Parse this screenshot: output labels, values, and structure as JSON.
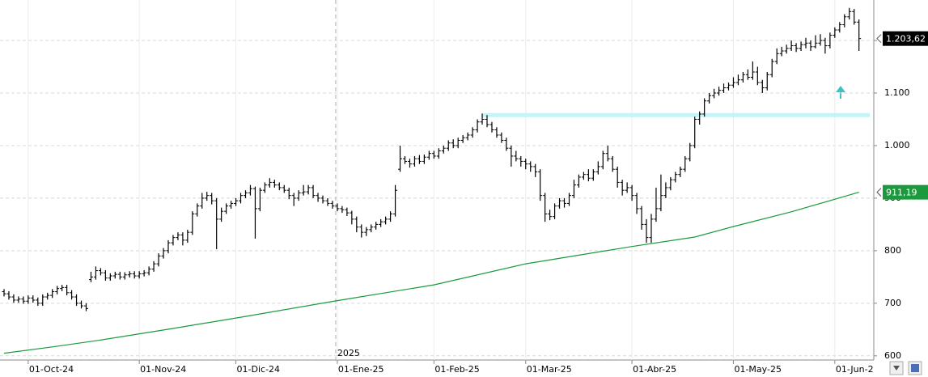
{
  "chart_data": {
    "type": "ohlc",
    "categories": [
      null,
      null,
      null,
      null,
      null,
      "01-Oct-24",
      null,
      null,
      null,
      null,
      null,
      null,
      null,
      null,
      null,
      null,
      null,
      null,
      null,
      null,
      null,
      null,
      null,
      null,
      null,
      null,
      null,
      null,
      "01-Nov-24",
      null,
      null,
      null,
      null,
      null,
      null,
      null,
      null,
      null,
      null,
      null,
      null,
      null,
      null,
      null,
      null,
      null,
      null,
      null,
      "01-Dic-24",
      null,
      null,
      null,
      null,
      null,
      null,
      null,
      null,
      null,
      null,
      null,
      null,
      null,
      null,
      null,
      null,
      null,
      null,
      null,
      null,
      "01-Ene-25",
      null,
      null,
      null,
      null,
      null,
      null,
      null,
      null,
      null,
      null,
      null,
      null,
      null,
      null,
      null,
      null,
      null,
      null,
      null,
      "01-Feb-25",
      null,
      null,
      null,
      null,
      null,
      null,
      null,
      null,
      null,
      null,
      null,
      null,
      null,
      null,
      null,
      null,
      null,
      null,
      "01-Mar-25",
      null,
      null,
      null,
      null,
      null,
      null,
      null,
      null,
      null,
      null,
      null,
      null,
      null,
      null,
      null,
      null,
      null,
      null,
      null,
      null,
      null,
      "01-Abr-25",
      null,
      null,
      null,
      null,
      null,
      null,
      null,
      null,
      null,
      null,
      null,
      null,
      null,
      null,
      null,
      null,
      null,
      null,
      null,
      null,
      "01-May-25",
      null,
      null,
      null,
      null,
      null,
      null,
      null,
      null,
      null,
      null,
      null,
      null,
      null,
      null,
      null,
      null,
      null,
      null,
      null,
      null,
      "01-Jun-2",
      null,
      null,
      null,
      null,
      null
    ],
    "ohlc": {
      "color": "#000000",
      "open": [
        722,
        718,
        712,
        706,
        708,
        704,
        710,
        706,
        700,
        712,
        715,
        722,
        728,
        730,
        720,
        712,
        700,
        695,
        745,
        750,
        762,
        758,
        748,
        752,
        755,
        750,
        754,
        756,
        752,
        756,
        758,
        765,
        775,
        790,
        800,
        815,
        825,
        830,
        820,
        835,
        870,
        885,
        900,
        905,
        895,
        860,
        875,
        885,
        890,
        895,
        905,
        910,
        918,
        880,
        915,
        925,
        930,
        925,
        920,
        915,
        905,
        900,
        910,
        912,
        920,
        905,
        900,
        895,
        890,
        885,
        880,
        878,
        872,
        860,
        845,
        835,
        840,
        845,
        850,
        855,
        860,
        870,
        955,
        975,
        970,
        965,
        975,
        970,
        978,
        985,
        980,
        990,
        995,
        1005,
        1000,
        1010,
        1015,
        1020,
        1030,
        1045,
        1050,
        1040,
        1030,
        1020,
        1010,
        995,
        980,
        975,
        970,
        965,
        960,
        950,
        905,
        870,
        865,
        885,
        895,
        890,
        905,
        925,
        940,
        945,
        938,
        950,
        960,
        985,
        975,
        955,
        930,
        915,
        920,
        905,
        880,
        850,
        825,
        860,
        880,
        905,
        920,
        935,
        945,
        955,
        975,
        1000,
        1050,
        1060,
        1085,
        1095,
        1100,
        1105,
        1110,
        1115,
        1120,
        1125,
        1135,
        1130,
        1140,
        1120,
        1110,
        1135,
        1160,
        1175,
        1180,
        1185,
        1190,
        1185,
        1192,
        1195,
        1188,
        1195,
        1200,
        1190,
        1210,
        1220,
        1230,
        1245,
        1255,
        1235
      ],
      "high": [
        727,
        723,
        717,
        713,
        713,
        715,
        715,
        711,
        717,
        720,
        727,
        733,
        735,
        735,
        725,
        717,
        705,
        700,
        760,
        770,
        767,
        763,
        757,
        760,
        760,
        759,
        761,
        761,
        761,
        763,
        770,
        780,
        795,
        805,
        820,
        830,
        835,
        835,
        840,
        875,
        890,
        910,
        912,
        910,
        900,
        882,
        890,
        895,
        900,
        910,
        915,
        925,
        922,
        920,
        930,
        938,
        935,
        930,
        925,
        920,
        910,
        915,
        925,
        925,
        925,
        910,
        905,
        900,
        895,
        890,
        885,
        882,
        876,
        865,
        850,
        845,
        850,
        855,
        860,
        865,
        875,
        925,
        1000,
        980,
        975,
        980,
        982,
        983,
        990,
        990,
        995,
        1000,
        1010,
        1012,
        1015,
        1020,
        1025,
        1035,
        1050,
        1061,
        1058,
        1045,
        1035,
        1025,
        1015,
        1000,
        990,
        980,
        975,
        970,
        965,
        955,
        910,
        878,
        890,
        900,
        900,
        910,
        935,
        945,
        950,
        955,
        955,
        970,
        990,
        1000,
        980,
        960,
        935,
        930,
        925,
        910,
        885,
        860,
        870,
        920,
        945,
        930,
        940,
        950,
        960,
        980,
        1005,
        1055,
        1065,
        1090,
        1100,
        1108,
        1112,
        1118,
        1120,
        1130,
        1135,
        1140,
        1145,
        1160,
        1150,
        1125,
        1140,
        1165,
        1185,
        1188,
        1192,
        1200,
        1195,
        1198,
        1205,
        1200,
        1210,
        1212,
        1205,
        1215,
        1225,
        1235,
        1250,
        1262,
        1260,
        1240
      ],
      "low": [
        713,
        707,
        701,
        701,
        699,
        699,
        701,
        695,
        695,
        707,
        710,
        717,
        723,
        715,
        707,
        695,
        690,
        685,
        740,
        745,
        753,
        743,
        743,
        747,
        745,
        745,
        749,
        747,
        747,
        751,
        753,
        760,
        770,
        785,
        795,
        810,
        820,
        810,
        815,
        830,
        865,
        880,
        895,
        888,
        803,
        855,
        870,
        880,
        885,
        890,
        900,
        905,
        823,
        875,
        910,
        920,
        920,
        915,
        910,
        898,
        885,
        895,
        905,
        907,
        900,
        893,
        890,
        885,
        880,
        875,
        872,
        866,
        850,
        835,
        825,
        828,
        835,
        840,
        845,
        850,
        855,
        865,
        950,
        965,
        958,
        960,
        965,
        965,
        973,
        975,
        975,
        985,
        990,
        995,
        995,
        1005,
        1010,
        1015,
        1025,
        1040,
        1035,
        1025,
        1015,
        1005,
        990,
        960,
        970,
        960,
        955,
        950,
        940,
        895,
        855,
        858,
        860,
        880,
        882,
        885,
        900,
        920,
        935,
        932,
        933,
        945,
        955,
        970,
        950,
        920,
        905,
        910,
        895,
        870,
        840,
        815,
        815,
        855,
        875,
        900,
        915,
        930,
        940,
        950,
        970,
        995,
        1040,
        1055,
        1080,
        1090,
        1095,
        1100,
        1105,
        1110,
        1115,
        1120,
        1125,
        1125,
        1115,
        1100,
        1105,
        1130,
        1155,
        1170,
        1175,
        1180,
        1178,
        1180,
        1185,
        1180,
        1185,
        1190,
        1175,
        1185,
        1205,
        1215,
        1225,
        1240,
        1230,
        1180
      ],
      "close": [
        718,
        712,
        706,
        708,
        704,
        710,
        706,
        700,
        712,
        715,
        722,
        728,
        730,
        720,
        712,
        700,
        695,
        690,
        750,
        762,
        758,
        748,
        752,
        755,
        750,
        754,
        756,
        752,
        756,
        758,
        765,
        775,
        790,
        800,
        815,
        825,
        830,
        820,
        835,
        870,
        885,
        900,
        905,
        895,
        860,
        875,
        885,
        890,
        895,
        905,
        910,
        918,
        880,
        915,
        925,
        930,
        925,
        920,
        915,
        905,
        900,
        910,
        912,
        920,
        905,
        900,
        895,
        890,
        885,
        880,
        878,
        872,
        860,
        845,
        835,
        840,
        845,
        850,
        855,
        860,
        870,
        915,
        975,
        970,
        965,
        975,
        970,
        978,
        985,
        980,
        990,
        995,
        1005,
        1000,
        1010,
        1015,
        1020,
        1030,
        1045,
        1050,
        1040,
        1030,
        1020,
        1010,
        995,
        980,
        975,
        970,
        965,
        960,
        950,
        905,
        870,
        865,
        885,
        895,
        890,
        905,
        925,
        940,
        945,
        938,
        950,
        960,
        985,
        975,
        955,
        930,
        915,
        920,
        905,
        880,
        850,
        825,
        860,
        880,
        905,
        920,
        935,
        945,
        955,
        975,
        1000,
        1050,
        1060,
        1085,
        1095,
        1100,
        1105,
        1110,
        1115,
        1120,
        1125,
        1135,
        1130,
        1140,
        1120,
        1110,
        1135,
        1160,
        1175,
        1180,
        1185,
        1190,
        1185,
        1192,
        1195,
        1188,
        1195,
        1200,
        1190,
        1210,
        1220,
        1230,
        1245,
        1255,
        1235,
        1203.62
      ]
    },
    "ma": {
      "color": "#1a9a3c",
      "x": [
        0,
        10,
        20,
        35,
        50,
        69,
        89,
        108,
        130,
        143,
        151,
        163,
        177
      ],
      "values": [
        605,
        617,
        630,
        652,
        675,
        705,
        735,
        775,
        808,
        826,
        846,
        874,
        911.19
      ]
    },
    "resistance": {
      "value": 1058,
      "color": "#c6f3f5"
    },
    "annotations": [
      {
        "text": "2025",
        "at": "01-Ene-25"
      }
    ],
    "last_labels": [
      {
        "value": 1203.62,
        "label": "1.203,62",
        "color": "#000000"
      },
      {
        "value": 911.19,
        "label": "911,19",
        "color": "#1a9a3c"
      }
    ],
    "ylim": [
      592,
      1277
    ],
    "yticks": [
      600,
      700,
      800,
      900,
      {
        "value": 1000,
        "label": "1.000"
      },
      {
        "value": 1100,
        "label": "1.100"
      },
      {
        "value": 1200,
        "label": "1.200"
      }
    ],
    "grid": true
  }
}
